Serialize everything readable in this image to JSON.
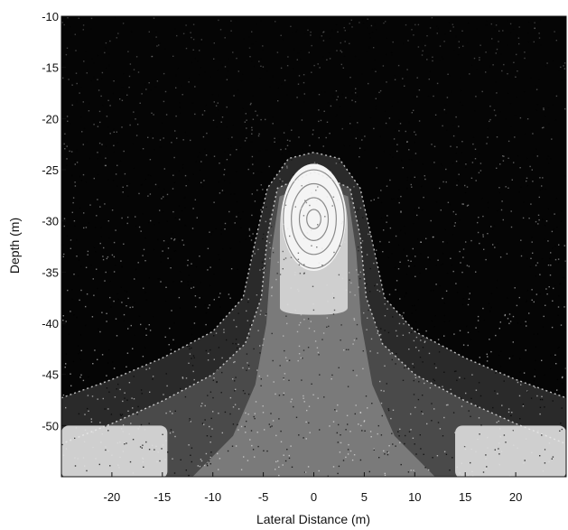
{
  "chart_data": {
    "type": "heatmap",
    "title": "",
    "xlabel": "Lateral Distance (m)",
    "ylabel": "Depth (m)",
    "xlim": [
      -25,
      25
    ],
    "ylim": [
      -55,
      -10
    ],
    "x_ticks": [
      -20,
      -15,
      -10,
      -5,
      0,
      5,
      10,
      15,
      20
    ],
    "y_ticks": [
      -10,
      -15,
      -20,
      -25,
      -30,
      -35,
      -40,
      -45,
      -50
    ],
    "colormap": "grayscale, black = low, white = high",
    "colors": {
      "background": "#050505",
      "level_1": "#2a2a2a",
      "level_2": "#4a4a4a",
      "level_3": "#7a7a7a",
      "level_4": "#cfcfcf",
      "level_5": "#f4f4f4",
      "contour_line": "#e8e8e8"
    },
    "features": [
      {
        "name": "central high",
        "center_x": 0,
        "center_y": -30,
        "half_width_x": 3,
        "top_y": -26,
        "bottom_y": -39
      },
      {
        "name": "lower-left high",
        "x_range": [
          -25,
          -14.5
        ],
        "y_range": [
          -55,
          -50
        ]
      },
      {
        "name": "lower-right high",
        "x_range": [
          14,
          25
        ],
        "y_range": [
          -55,
          -50
        ]
      }
    ]
  }
}
